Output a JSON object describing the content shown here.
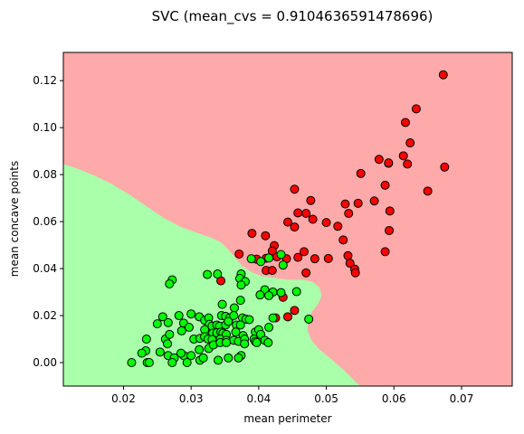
{
  "chart_data": {
    "type": "scatter",
    "title": "SVC (mean_cvs = 0.9104636591478696)",
    "xlabel": "mean perimeter",
    "ylabel": "mean concave points",
    "xlim": [
      0.0111,
      0.0775
    ],
    "ylim": [
      -0.01,
      0.132
    ],
    "xticks": [
      {
        "value": 0.02,
        "label": "0.02"
      },
      {
        "value": 0.03,
        "label": "0.03"
      },
      {
        "value": 0.04,
        "label": "0.04"
      },
      {
        "value": 0.05,
        "label": "0.05"
      },
      {
        "value": 0.06,
        "label": "0.06"
      },
      {
        "value": 0.07,
        "label": "0.07"
      }
    ],
    "yticks": [
      {
        "value": 0.0,
        "label": "0.00"
      },
      {
        "value": 0.02,
        "label": "0.02"
      },
      {
        "value": 0.04,
        "label": "0.04"
      },
      {
        "value": 0.06,
        "label": "0.06"
      },
      {
        "value": 0.08,
        "label": "0.08"
      },
      {
        "value": 0.1,
        "label": "0.10"
      },
      {
        "value": 0.12,
        "label": "0.12"
      }
    ],
    "grid": false,
    "colors": {
      "region_red": "#ffaaaa",
      "region_green": "#aaffaa",
      "point_red": "#ff0000",
      "point_green": "#00ff00",
      "point_edge": "#000000"
    },
    "decision_boundary": [
      [
        0.0111,
        0.0845
      ],
      [
        0.0135,
        0.0822
      ],
      [
        0.016,
        0.0792
      ],
      [
        0.0185,
        0.0756
      ],
      [
        0.021,
        0.0713
      ],
      [
        0.0235,
        0.0663
      ],
      [
        0.026,
        0.0615
      ],
      [
        0.0285,
        0.0577
      ],
      [
        0.031,
        0.0551
      ],
      [
        0.033,
        0.0531
      ],
      [
        0.0345,
        0.051
      ],
      [
        0.0355,
        0.048
      ],
      [
        0.0365,
        0.0447
      ],
      [
        0.0375,
        0.0413
      ],
      [
        0.039,
        0.0384
      ],
      [
        0.0405,
        0.0368
      ],
      [
        0.0425,
        0.0359
      ],
      [
        0.0445,
        0.0352
      ],
      [
        0.0465,
        0.0352
      ],
      [
        0.048,
        0.0343
      ],
      [
        0.049,
        0.032
      ],
      [
        0.0493,
        0.0285
      ],
      [
        0.0488,
        0.025
      ],
      [
        0.0479,
        0.0218
      ],
      [
        0.0473,
        0.018
      ],
      [
        0.0472,
        0.014
      ],
      [
        0.0477,
        0.01
      ],
      [
        0.0488,
        0.006
      ],
      [
        0.0505,
        0.002
      ],
      [
        0.0525,
        -0.003
      ],
      [
        0.055,
        -0.01
      ]
    ],
    "series": [
      {
        "color": "#ff0000",
        "points": [
          [
            0.0673,
            0.1225
          ],
          [
            0.0633,
            0.108
          ],
          [
            0.0617,
            0.1022
          ],
          [
            0.0624,
            0.0935
          ],
          [
            0.0614,
            0.088
          ],
          [
            0.0578,
            0.0865
          ],
          [
            0.0592,
            0.0848
          ],
          [
            0.0592,
            0.085
          ],
          [
            0.062,
            0.0845
          ],
          [
            0.0675,
            0.0832
          ],
          [
            0.0551,
            0.0805
          ],
          [
            0.0587,
            0.0755
          ],
          [
            0.065,
            0.073
          ],
          [
            0.0453,
            0.0738
          ],
          [
            0.0477,
            0.069
          ],
          [
            0.0571,
            0.0688
          ],
          [
            0.0547,
            0.0678
          ],
          [
            0.0528,
            0.0675
          ],
          [
            0.0594,
            0.0645
          ],
          [
            0.0458,
            0.0637
          ],
          [
            0.047,
            0.0635
          ],
          [
            0.0533,
            0.0635
          ],
          [
            0.048,
            0.061
          ],
          [
            0.0443,
            0.0598
          ],
          [
            0.05,
            0.0596
          ],
          [
            0.0593,
            0.0562
          ],
          [
            0.0517,
            0.058
          ],
          [
            0.0453,
            0.0577
          ],
          [
            0.039,
            0.055
          ],
          [
            0.041,
            0.054
          ],
          [
            0.0525,
            0.0522
          ],
          [
            0.0423,
            0.0498
          ],
          [
            0.042,
            0.0475
          ],
          [
            0.0467,
            0.0472
          ],
          [
            0.0587,
            0.0472
          ],
          [
            0.0371,
            0.0462
          ],
          [
            0.0532,
            0.0455
          ],
          [
            0.0458,
            0.0448
          ],
          [
            0.0397,
            0.044
          ],
          [
            0.0441,
            0.0442
          ],
          [
            0.0411,
            0.0444
          ],
          [
            0.0483,
            0.0442
          ],
          [
            0.0503,
            0.0443
          ],
          [
            0.0535,
            0.0423
          ],
          [
            0.0427,
            0.045
          ],
          [
            0.0542,
            0.0398
          ],
          [
            0.0543,
            0.0382
          ],
          [
            0.047,
            0.0382
          ],
          [
            0.0411,
            0.0392
          ],
          [
            0.042,
            0.0392
          ],
          [
            0.0344,
            0.0348
          ],
          [
            0.0436,
            0.0278
          ],
          [
            0.0453,
            0.0222
          ],
          [
            0.0443,
            0.0195
          ],
          [
            0.0425,
            0.019
          ]
        ]
      },
      {
        "color": "#00ff00",
        "points": [
          [
            0.0433,
            0.046
          ],
          [
            0.0389,
            0.0442
          ],
          [
            0.0415,
            0.0445
          ],
          [
            0.0436,
            0.0415
          ],
          [
            0.0403,
            0.043
          ],
          [
            0.0324,
            0.0375
          ],
          [
            0.0339,
            0.0377
          ],
          [
            0.0374,
            0.0377
          ],
          [
            0.0272,
            0.0352
          ],
          [
            0.0268,
            0.0335
          ],
          [
            0.0372,
            0.0358
          ],
          [
            0.038,
            0.0345
          ],
          [
            0.0374,
            0.033
          ],
          [
            0.0409,
            0.031
          ],
          [
            0.0421,
            0.03
          ],
          [
            0.0402,
            0.0288
          ],
          [
            0.0456,
            0.0302
          ],
          [
            0.0415,
            0.0285
          ],
          [
            0.0373,
            0.0265
          ],
          [
            0.0346,
            0.0248
          ],
          [
            0.0364,
            0.0233
          ],
          [
            0.0433,
            0.0298
          ],
          [
            0.0312,
            0.0195
          ],
          [
            0.032,
            0.018
          ],
          [
            0.0326,
            0.019
          ],
          [
            0.0345,
            0.02
          ],
          [
            0.0351,
            0.0197
          ],
          [
            0.0357,
            0.019
          ],
          [
            0.0363,
            0.02
          ],
          [
            0.0376,
            0.019
          ],
          [
            0.0381,
            0.0185
          ],
          [
            0.0386,
            0.0183
          ],
          [
            0.0421,
            0.019
          ],
          [
            0.0474,
            0.0185
          ],
          [
            0.0258,
            0.0195
          ],
          [
            0.025,
            0.0165
          ],
          [
            0.0266,
            0.017
          ],
          [
            0.0282,
            0.02
          ],
          [
            0.0289,
            0.0168
          ],
          [
            0.03,
            0.0207
          ],
          [
            0.0327,
            0.0163
          ],
          [
            0.0331,
            0.0155
          ],
          [
            0.0338,
            0.016
          ],
          [
            0.0342,
            0.0155
          ],
          [
            0.0351,
            0.016
          ],
          [
            0.0355,
            0.0175
          ],
          [
            0.0367,
            0.016
          ],
          [
            0.0373,
            0.016
          ],
          [
            0.0286,
            0.0135
          ],
          [
            0.0297,
            0.015
          ],
          [
            0.032,
            0.014
          ],
          [
            0.0332,
            0.0125
          ],
          [
            0.0338,
            0.0127
          ],
          [
            0.0344,
            0.013
          ],
          [
            0.0347,
            0.0125
          ],
          [
            0.0352,
            0.012
          ],
          [
            0.0366,
            0.013
          ],
          [
            0.0377,
            0.0115
          ],
          [
            0.0395,
            0.013
          ],
          [
            0.04,
            0.014
          ],
          [
            0.0403,
            0.012
          ],
          [
            0.0415,
            0.015
          ],
          [
            0.0234,
            0.01
          ],
          [
            0.0262,
            0.01
          ],
          [
            0.0268,
            0.012
          ],
          [
            0.0304,
            0.01
          ],
          [
            0.0313,
            0.0103
          ],
          [
            0.032,
            0.011
          ],
          [
            0.0325,
            0.01
          ],
          [
            0.0331,
            0.0098
          ],
          [
            0.0343,
            0.01
          ],
          [
            0.0352,
            0.0095
          ],
          [
            0.0363,
            0.0095
          ],
          [
            0.037,
            0.009
          ],
          [
            0.0379,
            0.01
          ],
          [
            0.0393,
            0.01
          ],
          [
            0.0395,
            0.009
          ],
          [
            0.0233,
            0.005
          ],
          [
            0.0265,
            0.008
          ],
          [
            0.0266,
            0.003
          ],
          [
            0.0289,
            0.003
          ],
          [
            0.0312,
            0.0055
          ],
          [
            0.0326,
            0.006
          ],
          [
            0.0333,
            0.0075
          ],
          [
            0.0343,
            0.0085
          ],
          [
            0.0352,
            0.0085
          ],
          [
            0.0379,
            0.008
          ],
          [
            0.0397,
            0.0085
          ],
          [
            0.0409,
            0.0095
          ],
          [
            0.0414,
            0.0085
          ],
          [
            0.0227,
            0.004
          ],
          [
            0.0254,
            0.0045
          ],
          [
            0.0275,
            0.002
          ],
          [
            0.0285,
            0.004
          ],
          [
            0.03,
            0.003
          ],
          [
            0.0313,
            0.001
          ],
          [
            0.0318,
            0.002
          ],
          [
            0.034,
            0.001
          ],
          [
            0.0355,
            0.002
          ],
          [
            0.0374,
            0.003
          ],
          [
            0.0212,
            0.0
          ],
          [
            0.0235,
            0.0
          ],
          [
            0.0238,
            0.0
          ],
          [
            0.0272,
            0.0
          ],
          [
            0.0294,
            0.0
          ],
          [
            0.037,
            0.002
          ]
        ]
      }
    ]
  }
}
